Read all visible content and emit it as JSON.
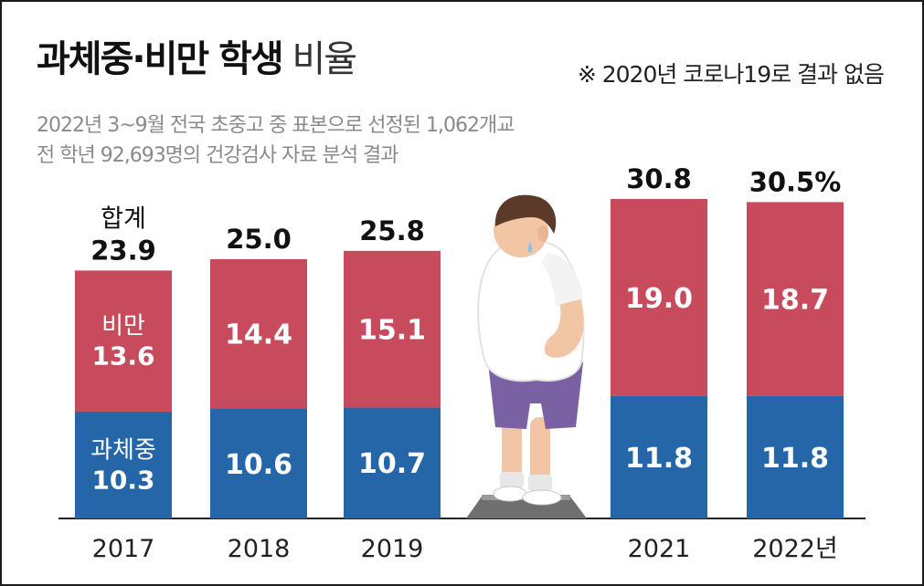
{
  "header": {
    "title_bold": "과체중·비만 학생",
    "title_light": " 비율",
    "note": "※ 2020년 코로나19로 결과 없음",
    "sub_line1": "2022년 3~9월 전국 초중고 중 표본으로 선정된 1,062개교",
    "sub_line2": "전 학년 92,693명의 건강검사 자료 분석 결과"
  },
  "chart_data": {
    "type": "bar",
    "stacked": true,
    "categories": [
      "2017",
      "2018",
      "2019",
      "2021",
      "2022년"
    ],
    "series": [
      {
        "name": "과체중",
        "values": [
          10.3,
          10.6,
          10.7,
          11.8,
          11.8
        ],
        "color": "#2466a8"
      },
      {
        "name": "비만",
        "values": [
          13.6,
          14.4,
          15.1,
          19.0,
          18.7
        ],
        "color": "#c74b5c"
      }
    ],
    "totals": [
      23.9,
      25.0,
      25.8,
      30.8,
      30.5
    ],
    "total_labels": [
      "23.9",
      "25.0",
      "25.8",
      "30.8",
      "30.5%"
    ],
    "total_caption": "합계",
    "ylim": [
      0,
      30.8
    ],
    "xlabel": "",
    "ylabel": "",
    "legend": "inline-first-bar",
    "grid": false,
    "note": "2020 missing"
  }
}
